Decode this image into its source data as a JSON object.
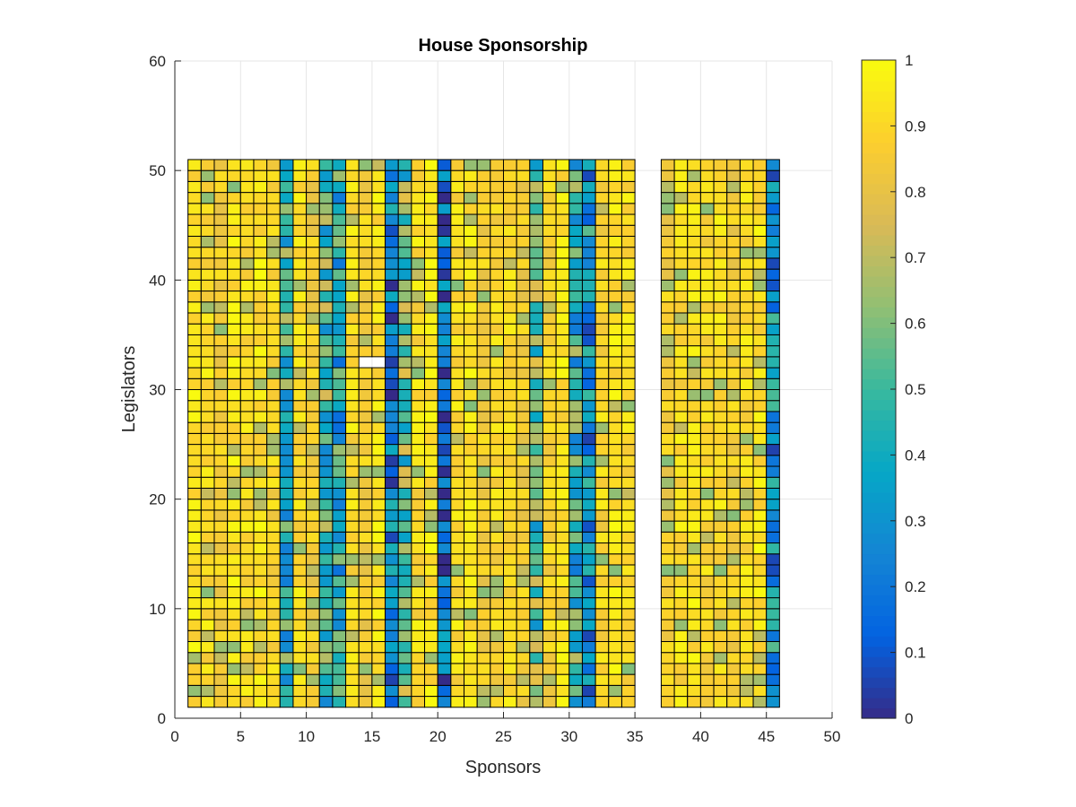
{
  "chart_data": {
    "type": "heatmap",
    "title": "House Sponsorship",
    "xlabel": "Sponsors",
    "ylabel": "Legislators",
    "xlim": [
      0,
      50
    ],
    "ylim": [
      0,
      60
    ],
    "xticks": [
      0,
      5,
      10,
      15,
      20,
      25,
      30,
      35,
      40,
      45,
      50
    ],
    "yticks": [
      0,
      10,
      20,
      30,
      40,
      50,
      60
    ],
    "grid": true,
    "colormap": "parula",
    "colorbar": {
      "range": [
        0,
        1
      ],
      "ticks": [
        "0",
        "0.1",
        "0.2",
        "0.3",
        "0.4",
        "0.5",
        "0.6",
        "0.7",
        "0.8",
        "0.9",
        "1"
      ],
      "colors": [
        "#352a87",
        "#0363e1",
        "#1485d4",
        "#06a7c6",
        "#38b99e",
        "#92bf73",
        "#d9ba56",
        "#fcce2e",
        "#f9fb0e"
      ]
    },
    "cell_size": 1,
    "x_range_cells": [
      1,
      46
    ],
    "y_range_cells": [
      1,
      51
    ],
    "empty_columns": [
      35,
      36
    ],
    "blank_cells": [
      [
        14,
        32
      ],
      [
        15,
        32
      ]
    ],
    "values_note": "",
    "column_profile": [
      0.92,
      0.9,
      0.85,
      0.92,
      0.9,
      0.92,
      0.88,
      0.45,
      0.9,
      0.85,
      0.5,
      0.4,
      0.9,
      0.85,
      0.92,
      0.2,
      0.55,
      0.9,
      0.92,
      0.15,
      0.9,
      0.92,
      0.85,
      0.88,
      0.9,
      0.85,
      0.55,
      0.88,
      0.92,
      0.45,
      0.3,
      0.88,
      0.92,
      0.9,
      null,
      null,
      0.85,
      0.9,
      0.92,
      0.88,
      0.9,
      0.85,
      0.9,
      0.92,
      0.3
    ]
  }
}
